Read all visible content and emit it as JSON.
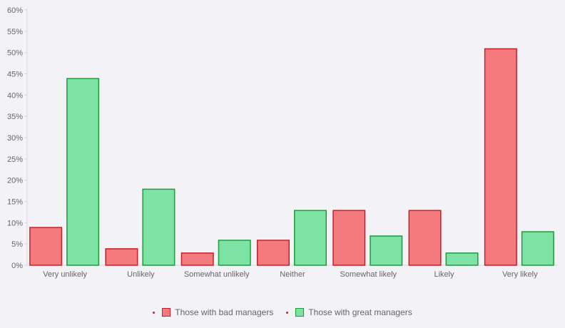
{
  "chart_data": {
    "type": "bar",
    "categories": [
      "Very unlikely",
      "Unlikely",
      "Somewhat unlikely",
      "Neither",
      "Somewhat likely",
      "Likely",
      "Very likely"
    ],
    "series": [
      {
        "name": "Those with bad managers",
        "values": [
          9,
          4,
          3,
          6,
          13,
          13,
          51
        ],
        "fill": "#f47a7e",
        "stroke": "#c4212b"
      },
      {
        "name": "Those with great managers",
        "values": [
          44,
          18,
          6,
          13,
          7,
          3,
          8
        ],
        "fill": "#7de3a4",
        "stroke": "#1f9a3e"
      }
    ],
    "ylim": [
      0,
      60
    ],
    "yticks": [
      "0%",
      "5%",
      "10%",
      "15%",
      "20%",
      "25%",
      "30%",
      "35%",
      "40%",
      "45%",
      "50%",
      "55%",
      "60%"
    ],
    "grid": false,
    "legend_position": "bottom-center"
  }
}
